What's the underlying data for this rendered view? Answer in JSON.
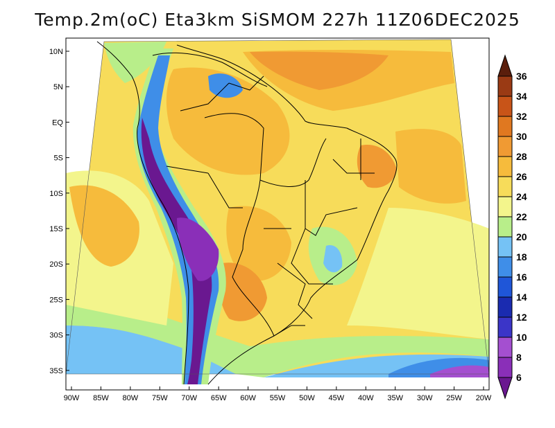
{
  "title": "Temp.2m(oC) Eta3km SiSMOM 227h 11Z06DEC2025",
  "variable": "Temp.2m",
  "units": "oC",
  "model": "Eta3km SiSMOM",
  "forecast_hour": "227h",
  "valid_time": "11Z06DEC2025",
  "lon_ticks": [
    "90W",
    "85W",
    "80W",
    "75W",
    "70W",
    "65W",
    "60W",
    "55W",
    "50W",
    "45W",
    "40W",
    "35W",
    "30W",
    "25W",
    "20W"
  ],
  "lat_ticks": [
    "10N",
    "5N",
    "EQ",
    "5S",
    "10S",
    "15S",
    "20S",
    "25S",
    "30S",
    "35S"
  ],
  "colorbar": {
    "labels": [
      "6",
      "8",
      "10",
      "12",
      "14",
      "16",
      "18",
      "20",
      "22",
      "24",
      "26",
      "28",
      "30",
      "32",
      "34",
      "36"
    ],
    "colors": [
      "#6a1890",
      "#8a2fb8",
      "#a44fd0",
      "#3b35c8",
      "#1a2bb0",
      "#1f56d8",
      "#3f8ee8",
      "#75c2f5",
      "#b8ee8a",
      "#f3f58c",
      "#f7dc5a",
      "#f6bb3c",
      "#f09a33",
      "#e07820",
      "#c85418",
      "#9a3a14",
      "#5a1e0c"
    ]
  }
}
